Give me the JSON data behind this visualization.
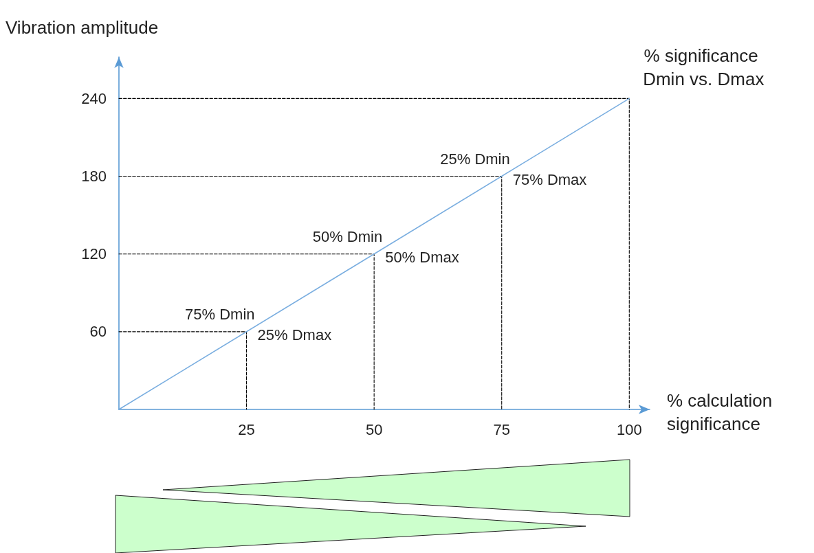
{
  "chart_data": {
    "type": "line",
    "xlabel": "% calculation significance",
    "ylabel": "Vibration amplitude",
    "xlim": [
      0,
      104
    ],
    "ylim": [
      0,
      272
    ],
    "xticks": [
      25,
      50,
      75,
      100
    ],
    "yticks": [
      60,
      120,
      180,
      240
    ],
    "grid": false,
    "legend": false,
    "marker": "none",
    "series": [
      {
        "name": "% significance Dmin vs. Dmax",
        "color": "#7aaee0",
        "x": [
          0,
          100
        ],
        "values": [
          0,
          240
        ],
        "line_style": "solid"
      },
      {
        "color": "#000000",
        "x": [
          0,
          25,
          25
        ],
        "values": [
          60,
          60,
          0
        ],
        "line_style": "dashed"
      },
      {
        "color": "#000000",
        "x": [
          0,
          50,
          50
        ],
        "values": [
          120,
          120,
          0
        ],
        "line_style": "dashed"
      },
      {
        "color": "#000000",
        "x": [
          0,
          75,
          75
        ],
        "values": [
          180,
          180,
          0
        ],
        "line_style": "dashed"
      },
      {
        "color": "#000000",
        "x": [
          0,
          100,
          100
        ],
        "values": [
          240,
          240,
          0
        ],
        "line_style": "dashed"
      }
    ],
    "annotations": [
      {
        "text": "75% Dmin",
        "x": 25,
        "y": 60
      },
      {
        "text": "25% Dmax",
        "x": 25,
        "y": 60
      },
      {
        "text": "50% Dmin",
        "x": 50,
        "y": 120
      },
      {
        "text": "50% Dmax",
        "x": 50,
        "y": 120
      },
      {
        "text": "25% Dmin",
        "x": 75,
        "y": 180
      },
      {
        "text": "75% Dmax",
        "x": 75,
        "y": 180
      }
    ]
  }
}
